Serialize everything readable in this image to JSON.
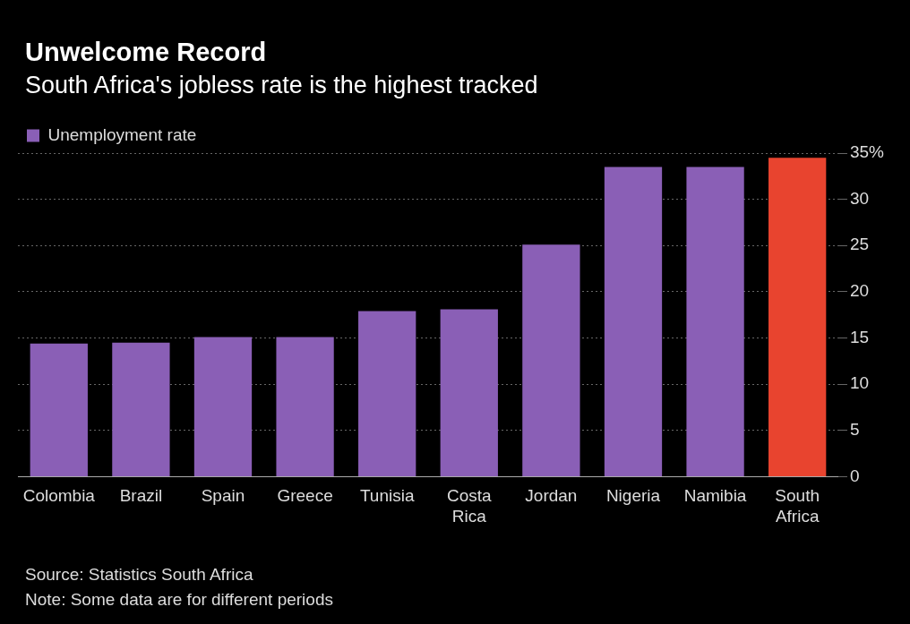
{
  "chart_data": {
    "type": "bar",
    "title": "Unwelcome Record",
    "subtitle": "South Africa's jobless rate is the highest tracked",
    "categories": [
      "Colombia",
      "Brazil",
      "Spain",
      "Greece",
      "Tunisia",
      "Costa Rica",
      "Jordan",
      "Nigeria",
      "Namibia",
      "South Africa"
    ],
    "series": [
      {
        "name": "Unemployment rate",
        "color": "#8a5fb6",
        "colors": [
          "#8a5fb6",
          "#8a5fb6",
          "#8a5fb6",
          "#8a5fb6",
          "#8a5fb6",
          "#8a5fb6",
          "#8a5fb6",
          "#8a5fb6",
          "#8a5fb6",
          "#e8442f"
        ],
        "values": [
          14.4,
          14.5,
          15.1,
          15.1,
          17.9,
          18.1,
          25.1,
          33.5,
          33.5,
          34.5
        ]
      }
    ],
    "ylim": [
      0,
      35
    ],
    "yticks": [
      0,
      5,
      10,
      15,
      20,
      25,
      30,
      {
        "value": 35,
        "label": "35%"
      }
    ],
    "grid": "y",
    "legend": "top left",
    "annotations": [
      "Source: Statistics South Africa",
      "Note: Some data are for different periods"
    ]
  }
}
